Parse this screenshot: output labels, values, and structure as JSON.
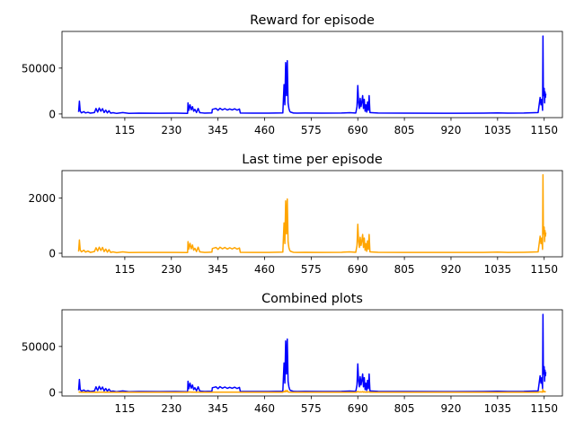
{
  "chart_data": [
    {
      "type": "line",
      "title": "Reward for episode",
      "xlabel": "",
      "ylabel": "",
      "xlim": [
        -40,
        1195
      ],
      "ylim": [
        -4000,
        90000
      ],
      "xticks": [
        115,
        230,
        345,
        460,
        575,
        690,
        805,
        920,
        1035,
        1150
      ],
      "yticks": [
        0,
        50000
      ],
      "ytick_labels": [
        "0",
        "50000"
      ],
      "series": [
        {
          "color": "#0000ff",
          "points": [
            [
              1,
              2200
            ],
            [
              3,
              14000
            ],
            [
              5,
              3000
            ],
            [
              8,
              1200
            ],
            [
              14,
              2500
            ],
            [
              18,
              1100
            ],
            [
              24,
              1800
            ],
            [
              30,
              900
            ],
            [
              40,
              1500
            ],
            [
              44,
              6000
            ],
            [
              48,
              2000
            ],
            [
              52,
              6500
            ],
            [
              56,
              3000
            ],
            [
              60,
              5800
            ],
            [
              64,
              1600
            ],
            [
              68,
              4200
            ],
            [
              72,
              1200
            ],
            [
              76,
              3500
            ],
            [
              80,
              900
            ],
            [
              86,
              1400
            ],
            [
              95,
              600
            ],
            [
              110,
              1500
            ],
            [
              125,
              700
            ],
            [
              150,
              900
            ],
            [
              200,
              800
            ],
            [
              240,
              900
            ],
            [
              270,
              700
            ],
            [
              271,
              12000
            ],
            [
              273,
              4000
            ],
            [
              276,
              10000
            ],
            [
              279,
              4500
            ],
            [
              282,
              8000
            ],
            [
              285,
              3000
            ],
            [
              288,
              5000
            ],
            [
              292,
              1600
            ],
            [
              296,
              6000
            ],
            [
              300,
              1400
            ],
            [
              305,
              1200
            ],
            [
              312,
              900
            ],
            [
              320,
              1000
            ],
            [
              330,
              1200
            ],
            [
              331,
              5000
            ],
            [
              340,
              6000
            ],
            [
              345,
              4000
            ],
            [
              350,
              6200
            ],
            [
              356,
              4500
            ],
            [
              362,
              5800
            ],
            [
              368,
              4300
            ],
            [
              374,
              5500
            ],
            [
              380,
              4400
            ],
            [
              386,
              5600
            ],
            [
              392,
              4200
            ],
            [
              398,
              5400
            ],
            [
              400,
              1000
            ],
            [
              430,
              900
            ],
            [
              470,
              900
            ],
            [
              505,
              1100
            ],
            [
              508,
              32000
            ],
            [
              510,
              10000
            ],
            [
              512,
              56000
            ],
            [
              514,
              20000
            ],
            [
              516,
              58000
            ],
            [
              518,
              12000
            ],
            [
              520,
              6000
            ],
            [
              522,
              3000
            ],
            [
              524,
              2000
            ],
            [
              528,
              1500
            ],
            [
              531,
              1000
            ],
            [
              540,
              900
            ],
            [
              560,
              1000
            ],
            [
              600,
              900
            ],
            [
              650,
              1000
            ],
            [
              670,
              1400
            ],
            [
              685,
              1000
            ],
            [
              688,
              8000
            ],
            [
              690,
              31000
            ],
            [
              692,
              12000
            ],
            [
              694,
              6000
            ],
            [
              696,
              17000
            ],
            [
              698,
              8000
            ],
            [
              700,
              13000
            ],
            [
              702,
              20000
            ],
            [
              704,
              6000
            ],
            [
              706,
              16000
            ],
            [
              708,
              3000
            ],
            [
              710,
              10000
            ],
            [
              712,
              2000
            ],
            [
              714,
              13000
            ],
            [
              716,
              4000
            ],
            [
              718,
              20000
            ],
            [
              720,
              1500
            ],
            [
              740,
              1000
            ],
            [
              800,
              900
            ],
            [
              900,
              800
            ],
            [
              1000,
              900
            ],
            [
              1035,
              1200
            ],
            [
              1060,
              900
            ],
            [
              1100,
              1000
            ],
            [
              1135,
              1500
            ],
            [
              1140,
              18000
            ],
            [
              1142,
              10000
            ],
            [
              1144,
              16000
            ],
            [
              1146,
              4000
            ],
            [
              1147,
              85000
            ],
            [
              1148,
              20000
            ],
            [
              1150,
              28000
            ],
            [
              1151,
              12000
            ],
            [
              1152,
              24000
            ],
            [
              1153,
              18000
            ],
            [
              1154,
              22000
            ]
          ]
        }
      ]
    },
    {
      "type": "line",
      "title": "Last time per episode",
      "xlabel": "",
      "ylabel": "",
      "xlim": [
        -40,
        1195
      ],
      "ylim": [
        -130,
        3000
      ],
      "xticks": [
        115,
        230,
        345,
        460,
        575,
        690,
        805,
        920,
        1035,
        1150
      ],
      "yticks": [
        0,
        2000
      ],
      "ytick_labels": [
        "0",
        "2000"
      ],
      "series": [
        {
          "color": "#ffa500",
          "points": [
            [
              1,
              60
            ],
            [
              3,
              480
            ],
            [
              5,
              120
            ],
            [
              8,
              50
            ],
            [
              14,
              110
            ],
            [
              18,
              40
            ],
            [
              24,
              80
            ],
            [
              30,
              30
            ],
            [
              40,
              60
            ],
            [
              44,
              200
            ],
            [
              48,
              80
            ],
            [
              52,
              220
            ],
            [
              56,
              100
            ],
            [
              60,
              210
            ],
            [
              64,
              60
            ],
            [
              68,
              150
            ],
            [
              72,
              40
            ],
            [
              76,
              130
            ],
            [
              80,
              30
            ],
            [
              86,
              50
            ],
            [
              95,
              20
            ],
            [
              110,
              50
            ],
            [
              125,
              25
            ],
            [
              150,
              30
            ],
            [
              200,
              30
            ],
            [
              240,
              30
            ],
            [
              270,
              25
            ],
            [
              271,
              420
            ],
            [
              273,
              150
            ],
            [
              276,
              360
            ],
            [
              279,
              160
            ],
            [
              282,
              300
            ],
            [
              285,
              110
            ],
            [
              288,
              180
            ],
            [
              292,
              60
            ],
            [
              296,
              220
            ],
            [
              300,
              50
            ],
            [
              305,
              40
            ],
            [
              312,
              30
            ],
            [
              320,
              35
            ],
            [
              330,
              40
            ],
            [
              331,
              170
            ],
            [
              340,
              210
            ],
            [
              345,
              140
            ],
            [
              350,
              220
            ],
            [
              356,
              160
            ],
            [
              362,
              210
            ],
            [
              368,
              150
            ],
            [
              374,
              200
            ],
            [
              380,
              155
            ],
            [
              386,
              205
            ],
            [
              392,
              150
            ],
            [
              398,
              190
            ],
            [
              400,
              35
            ],
            [
              430,
              30
            ],
            [
              470,
              30
            ],
            [
              505,
              40
            ],
            [
              508,
              1100
            ],
            [
              510,
              350
            ],
            [
              512,
              1900
            ],
            [
              514,
              700
            ],
            [
              516,
              1970
            ],
            [
              518,
              420
            ],
            [
              520,
              200
            ],
            [
              522,
              110
            ],
            [
              524,
              70
            ],
            [
              528,
              50
            ],
            [
              531,
              35
            ],
            [
              540,
              30
            ],
            [
              560,
              35
            ],
            [
              600,
              30
            ],
            [
              650,
              35
            ],
            [
              670,
              50
            ],
            [
              685,
              35
            ],
            [
              688,
              280
            ],
            [
              690,
              1050
            ],
            [
              692,
              420
            ],
            [
              694,
              210
            ],
            [
              696,
              580
            ],
            [
              698,
              280
            ],
            [
              700,
              450
            ],
            [
              702,
              680
            ],
            [
              704,
              210
            ],
            [
              706,
              550
            ],
            [
              708,
              110
            ],
            [
              710,
              350
            ],
            [
              712,
              70
            ],
            [
              714,
              450
            ],
            [
              716,
              140
            ],
            [
              718,
              680
            ],
            [
              720,
              50
            ],
            [
              740,
              35
            ],
            [
              800,
              30
            ],
            [
              900,
              28
            ],
            [
              1000,
              30
            ],
            [
              1035,
              40
            ],
            [
              1060,
              30
            ],
            [
              1100,
              35
            ],
            [
              1135,
              50
            ],
            [
              1140,
              620
            ],
            [
              1142,
              350
            ],
            [
              1144,
              550
            ],
            [
              1146,
              140
            ],
            [
              1147,
              2850
            ],
            [
              1148,
              700
            ],
            [
              1150,
              950
            ],
            [
              1151,
              420
            ],
            [
              1152,
              820
            ],
            [
              1153,
              620
            ],
            [
              1154,
              750
            ]
          ]
        }
      ]
    },
    {
      "type": "line",
      "title": "Combined plots",
      "xlabel": "",
      "ylabel": "",
      "xlim": [
        -40,
        1195
      ],
      "ylim": [
        -4000,
        90000
      ],
      "xticks": [
        115,
        230,
        345,
        460,
        575,
        690,
        805,
        920,
        1035,
        1150
      ],
      "yticks": [
        0,
        50000
      ],
      "ytick_labels": [
        "0",
        "50000"
      ],
      "series": [
        {
          "color": "#0000ff",
          "same_as": "reward"
        },
        {
          "color": "#ffa500",
          "same_as": "time"
        }
      ]
    }
  ]
}
